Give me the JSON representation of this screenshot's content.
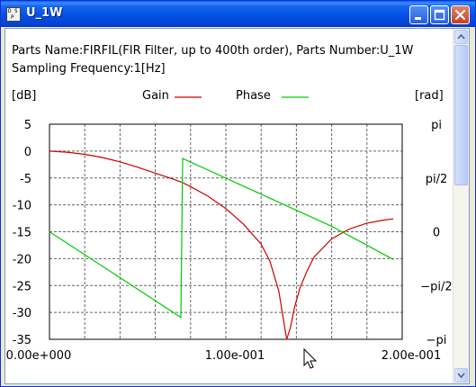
{
  "window": {
    "title": "U_1W",
    "icon_letters": [
      "D",
      "S",
      "P"
    ],
    "buttons": [
      "minimize",
      "maximize",
      "close"
    ]
  },
  "info": {
    "line1": "Parts Name:FIRFIL(FIR Filter, up to 400th order), Parts Number:U_1W",
    "line2": "Sampling Frequency:1[Hz]"
  },
  "chart_data": {
    "type": "line",
    "left_unit": "[dB]",
    "right_unit": "[rad]",
    "legend": [
      {
        "name": "Gain",
        "color": "#cc0000"
      },
      {
        "name": "Phase",
        "color": "#00cc00"
      }
    ],
    "x_ticks": [
      "0.00e+000",
      "1.00e-001",
      "2.00e-001"
    ],
    "xlim": [
      0,
      0.2
    ],
    "y_left_ticks": [
      "5",
      "0",
      "-5",
      "-10",
      "-15",
      "-20",
      "-25",
      "-30",
      "-35"
    ],
    "ylim_left": [
      -35,
      5
    ],
    "y_right_ticks": [
      "pi",
      "pi/2",
      "0",
      "−pi/2",
      "−pi"
    ],
    "ylim_right": [
      -3.1416,
      3.1416
    ],
    "grid": true,
    "series": [
      {
        "name": "Gain",
        "axis": "left",
        "x": [
          0,
          0.01,
          0.02,
          0.03,
          0.04,
          0.05,
          0.06,
          0.07,
          0.075,
          0.08,
          0.09,
          0.1,
          0.11,
          0.12,
          0.125,
          0.13,
          0.1325,
          0.1345,
          0.1365,
          0.139,
          0.142,
          0.146,
          0.15,
          0.16,
          0.17,
          0.18,
          0.19,
          0.195
        ],
        "values": [
          0,
          -0.2,
          -0.6,
          -1.2,
          -2.0,
          -3.0,
          -4.1,
          -5.2,
          -5.8,
          -6.6,
          -8.4,
          -10.7,
          -13.6,
          -17.3,
          -20.5,
          -26.0,
          -31.0,
          -35.0,
          -33.0,
          -29.0,
          -25.5,
          -22.3,
          -19.7,
          -16.3,
          -14.5,
          -13.4,
          -12.8,
          -12.6
        ]
      },
      {
        "name": "Phase",
        "axis": "right",
        "x": [
          0,
          0.0745,
          0.0745,
          0.0755,
          0.16,
          0.195
        ],
        "values": [
          0.0,
          -2.5,
          -2.5,
          2.14,
          0.16,
          -0.81
        ]
      }
    ]
  }
}
